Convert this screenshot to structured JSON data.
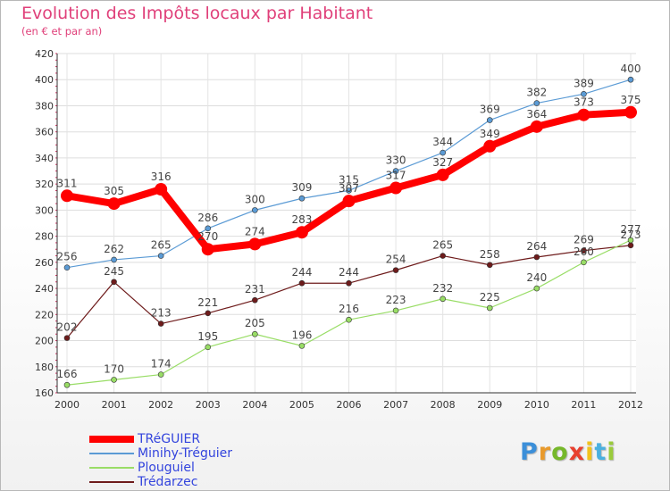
{
  "page": {
    "title": "Evolution des Impôts locaux par Habitant",
    "subtitle": "(en € et par an)"
  },
  "chart_data": {
    "type": "line",
    "title": "Evolution des Impôts locaux par Habitant",
    "subtitle": "(en € et par an)",
    "xlabel": "",
    "ylabel": "",
    "x": [
      "2000",
      "2001",
      "2002",
      "2003",
      "2004",
      "2005",
      "2006",
      "2007",
      "2008",
      "2009",
      "2010",
      "2011",
      "2012"
    ],
    "ylim": [
      160,
      420
    ],
    "yticks": [
      160,
      180,
      200,
      220,
      240,
      260,
      280,
      300,
      320,
      340,
      360,
      380,
      400,
      420
    ],
    "grid": true,
    "legend_position": "bottom-left",
    "series": [
      {
        "name": "TRéGUIER",
        "color": "#ff0000",
        "values": [
          311,
          305,
          316,
          270,
          274,
          283,
          307,
          317,
          327,
          349,
          364,
          373,
          375
        ]
      },
      {
        "name": "Minihy-Tréguier",
        "color": "#5b9bd5",
        "values": [
          256,
          262,
          265,
          286,
          300,
          309,
          315,
          330,
          344,
          369,
          382,
          389,
          400
        ]
      },
      {
        "name": "Plouguiel",
        "color": "#99dd66",
        "values": [
          166,
          170,
          174,
          195,
          205,
          196,
          216,
          223,
          232,
          225,
          240,
          260,
          277
        ]
      },
      {
        "name": "Trédarzec",
        "color": "#6e1b1b",
        "values": [
          202,
          245,
          213,
          221,
          231,
          244,
          244,
          254,
          265,
          258,
          264,
          269,
          273
        ]
      }
    ]
  },
  "logo": {
    "letters": [
      "P",
      "r",
      "o",
      "x",
      "i",
      "t",
      "i"
    ],
    "colors": [
      "#3b8fd9",
      "#e89a2c",
      "#76b82a",
      "#e8402f",
      "#f2c21b",
      "#4ab0e0",
      "#9acb3b"
    ]
  }
}
